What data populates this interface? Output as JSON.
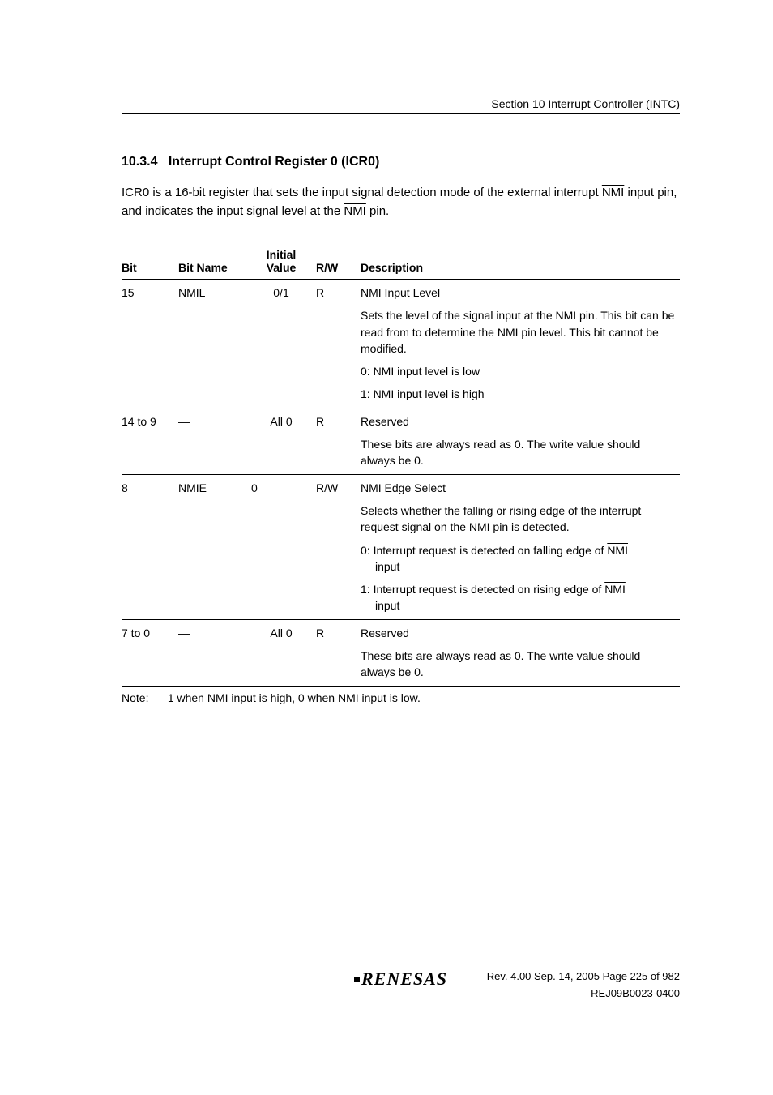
{
  "header": {
    "section_label": "Section 10   Interrupt Controller (INTC)"
  },
  "section": {
    "number": "10.3.4",
    "title": "Interrupt Control Register 0 (ICR0)"
  },
  "intro": {
    "line1_prefix": "ICR0 is a 16-bit register that sets the input signal detection mode of the external interrupt ",
    "nmi1": "NMI",
    "line1_mid": " input pin, and indicates the input signal level at the ",
    "nmi2": "NMI",
    "line1_suffix": " pin."
  },
  "table": {
    "headers": {
      "bit": "Bit",
      "name": "Bit Name",
      "initial": "Initial Value",
      "rw": "R/W",
      "desc": "Description"
    },
    "rows": [
      {
        "bit": "15",
        "name": "NMIL",
        "initial": "0/1",
        "rw": "R",
        "desc_title": "NMI Input Level",
        "desc_body": "Sets the level of the signal input at the NMI pin. This bit can be read from to determine the NMI pin level. This bit cannot be modified.",
        "opt0": "0: NMI input level is low",
        "opt1": "1: NMI input level is high"
      },
      {
        "bit": "14 to 9",
        "name": "—",
        "initial": "All 0",
        "rw": "R",
        "desc_title": "Reserved",
        "desc_body": "These bits are always read as 0. The write value should always be 0."
      },
      {
        "bit": "8",
        "name": "NMIE",
        "initial": "0",
        "rw": "R/W",
        "desc_title": "NMI Edge Select",
        "desc_body_prefix": "Selects whether the falling or rising edge of the interrupt request signal on the ",
        "desc_body_nmi": "NMI",
        "desc_body_suffix": " pin is detected.",
        "opt0_prefix": "0: Interrupt request is detected on falling edge of ",
        "opt0_nmi": "NMI",
        "opt0_suffix": "input",
        "opt1_prefix": "1: Interrupt request is detected on rising edge of ",
        "opt1_nmi": "NMI",
        "opt1_suffix": "input"
      },
      {
        "bit": "7 to 0",
        "name": "—",
        "initial": "All 0",
        "rw": "R",
        "desc_title": "Reserved",
        "desc_body": "These bits are always read as 0. The write value should always be 0."
      }
    ],
    "note_label": "Note:",
    "note_prefix": "1 when ",
    "note_nmi1": "NMI",
    "note_mid": " input is high, 0 when ",
    "note_nmi2": "NMI",
    "note_suffix": " input is low."
  },
  "footer": {
    "logo": "RENESAS",
    "rev": "Rev. 4.00  Sep. 14, 2005  Page 225 of 982",
    "doc": "REJ09B0023-0400"
  }
}
